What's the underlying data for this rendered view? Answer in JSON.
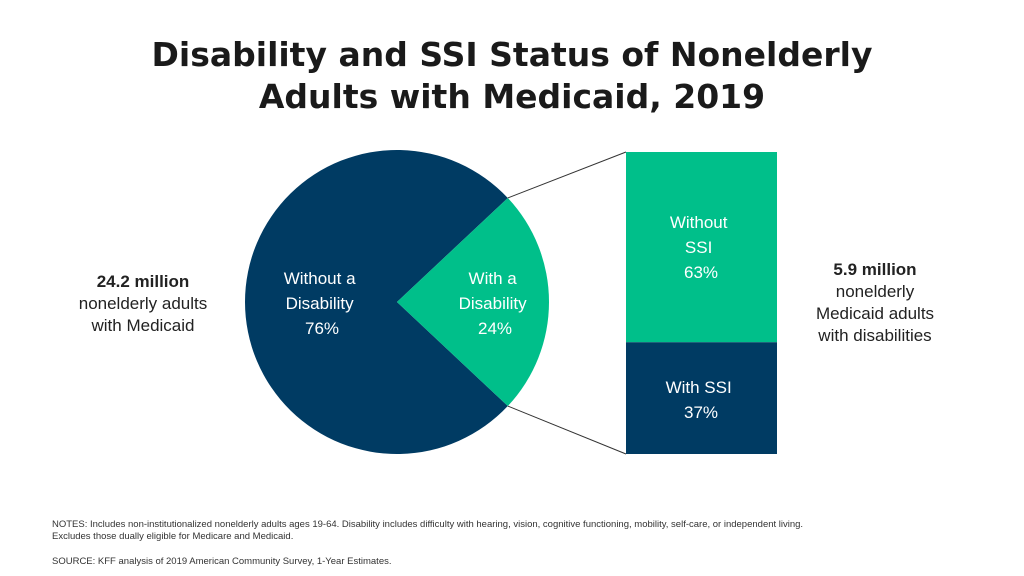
{
  "title": {
    "line1": "Disability and SSI Status of Nonelderly",
    "line2": "Adults with Medicaid, 2019"
  },
  "left_label": {
    "value": "24.2 million",
    "line1": "nonelderly adults",
    "line2": "with Medicaid"
  },
  "right_label": {
    "value": "5.9 million",
    "line1": "nonelderly",
    "line2": "Medicaid adults",
    "line3": "with disabilities"
  },
  "notes": "NOTES: Includes non-institutionalized nonelderly adults ages 19-64. Disability includes difficulty with hearing, vision, cognitive functioning, mobility, self-care, or independent living. Excludes those dually eligible for Medicare and Medicaid.",
  "source": "SOURCE: KFF analysis of 2019 American Community Survey, 1-Year Estimates.",
  "colors": {
    "navy": "#003B63",
    "green": "#00BF8A",
    "connector": "#333333"
  },
  "chart_data": [
    {
      "type": "pie",
      "slices": [
        {
          "label_line1": "Without a",
          "label_line2": "Disability",
          "value": 76,
          "value_label": "76%",
          "color": "#003B63"
        },
        {
          "label_line1": "With a",
          "label_line2": "Disability",
          "value": 24,
          "value_label": "24%",
          "color": "#00BF8A"
        }
      ]
    },
    {
      "type": "bar",
      "stacked": true,
      "segments": [
        {
          "label_line1": "Without",
          "label_line2": "SSI",
          "value": 63,
          "value_label": "63%",
          "color": "#00BF8A"
        },
        {
          "label_line1": "With SSI",
          "label_line2": "",
          "value": 37,
          "value_label": "37%",
          "color": "#003B63"
        }
      ]
    }
  ]
}
